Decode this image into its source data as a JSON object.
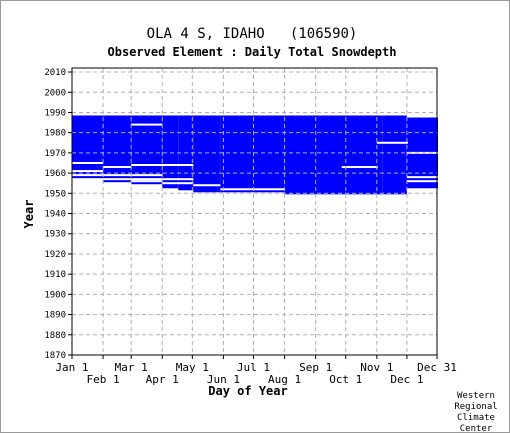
{
  "chart_data": {
    "type": "heatmap",
    "title": "OLA 4 S, IDAHO   (106590)",
    "subtitle": "Observed Element : Daily Total Snowdepth",
    "xlabel": "Day of Year",
    "ylabel": "Year",
    "ylim": [
      1870,
      2012
    ],
    "xlim": [
      1,
      365
    ],
    "yticks": [
      1870,
      1880,
      1890,
      1900,
      1910,
      1920,
      1930,
      1940,
      1950,
      1960,
      1970,
      1980,
      1990,
      2000,
      2010
    ],
    "xticks_top": [
      {
        "label": "Jan 1",
        "day": 1
      },
      {
        "label": "Mar 1",
        "day": 60
      },
      {
        "label": "May 1",
        "day": 121
      },
      {
        "label": "Jul 1",
        "day": 182
      },
      {
        "label": "Sep 1",
        "day": 244
      },
      {
        "label": "Nov 1",
        "day": 305
      },
      {
        "label": "Dec 31",
        "day": 365
      }
    ],
    "xticks_bottom": [
      {
        "label": "Feb 1",
        "day": 32
      },
      {
        "label": "Apr 1",
        "day": 91
      },
      {
        "label": "Jun 1",
        "day": 152
      },
      {
        "label": "Aug 1",
        "day": 213
      },
      {
        "label": "Oct 1",
        "day": 274
      },
      {
        "label": "Dec 1",
        "day": 335
      }
    ],
    "grid": true,
    "color": "#0000ff",
    "coverage": [
      {
        "start_day": 1,
        "end_day": 31,
        "year_start": 1958,
        "year_end": 1988
      },
      {
        "start_day": 32,
        "end_day": 59,
        "year_start": 1956,
        "year_end": 1988
      },
      {
        "start_day": 60,
        "end_day": 90,
        "year_start": 1955,
        "year_end": 1988
      },
      {
        "start_day": 91,
        "end_day": 106,
        "year_start": 1953,
        "year_end": 1988
      },
      {
        "start_day": 107,
        "end_day": 121,
        "year_start": 1952,
        "year_end": 1988
      },
      {
        "start_day": 122,
        "end_day": 148,
        "year_start": 1951,
        "year_end": 1988
      },
      {
        "start_day": 149,
        "end_day": 212,
        "year_start": 1951,
        "year_end": 1988
      },
      {
        "start_day": 213,
        "end_day": 310,
        "year_start": 1950,
        "year_end": 1988
      },
      {
        "start_day": 311,
        "end_day": 334,
        "year_start": 1950,
        "year_end": 1988
      },
      {
        "start_day": 335,
        "end_day": 365,
        "year_start": 1953,
        "year_end": 1987
      }
    ],
    "gaps": [
      {
        "start_day": 1,
        "end_day": 31,
        "year": 1965
      },
      {
        "start_day": 1,
        "end_day": 31,
        "year": 1961
      },
      {
        "start_day": 1,
        "end_day": 31,
        "year": 1959
      },
      {
        "start_day": 32,
        "end_day": 59,
        "year": 1963
      },
      {
        "start_day": 32,
        "end_day": 59,
        "year": 1959
      },
      {
        "start_day": 32,
        "end_day": 59,
        "year": 1957
      },
      {
        "start_day": 60,
        "end_day": 90,
        "year": 1984
      },
      {
        "start_day": 60,
        "end_day": 121,
        "year": 1964
      },
      {
        "start_day": 60,
        "end_day": 90,
        "year": 1959
      },
      {
        "start_day": 60,
        "end_day": 90,
        "year": 1957
      },
      {
        "start_day": 60,
        "end_day": 90,
        "year": 1956
      },
      {
        "start_day": 91,
        "end_day": 121,
        "year": 1957
      },
      {
        "start_day": 91,
        "end_day": 121,
        "year": 1955
      },
      {
        "start_day": 122,
        "end_day": 148,
        "year": 1954
      },
      {
        "start_day": 149,
        "end_day": 212,
        "year": 1952
      },
      {
        "start_day": 270,
        "end_day": 305,
        "year": 1963
      },
      {
        "start_day": 305,
        "end_day": 335,
        "year": 1975
      },
      {
        "start_day": 335,
        "end_day": 365,
        "year": 1970
      },
      {
        "start_day": 335,
        "end_day": 365,
        "year": 1958
      },
      {
        "start_day": 335,
        "end_day": 365,
        "year": 1956
      }
    ]
  },
  "credit": [
    "Western",
    "Regional",
    "Climate",
    "Center"
  ]
}
